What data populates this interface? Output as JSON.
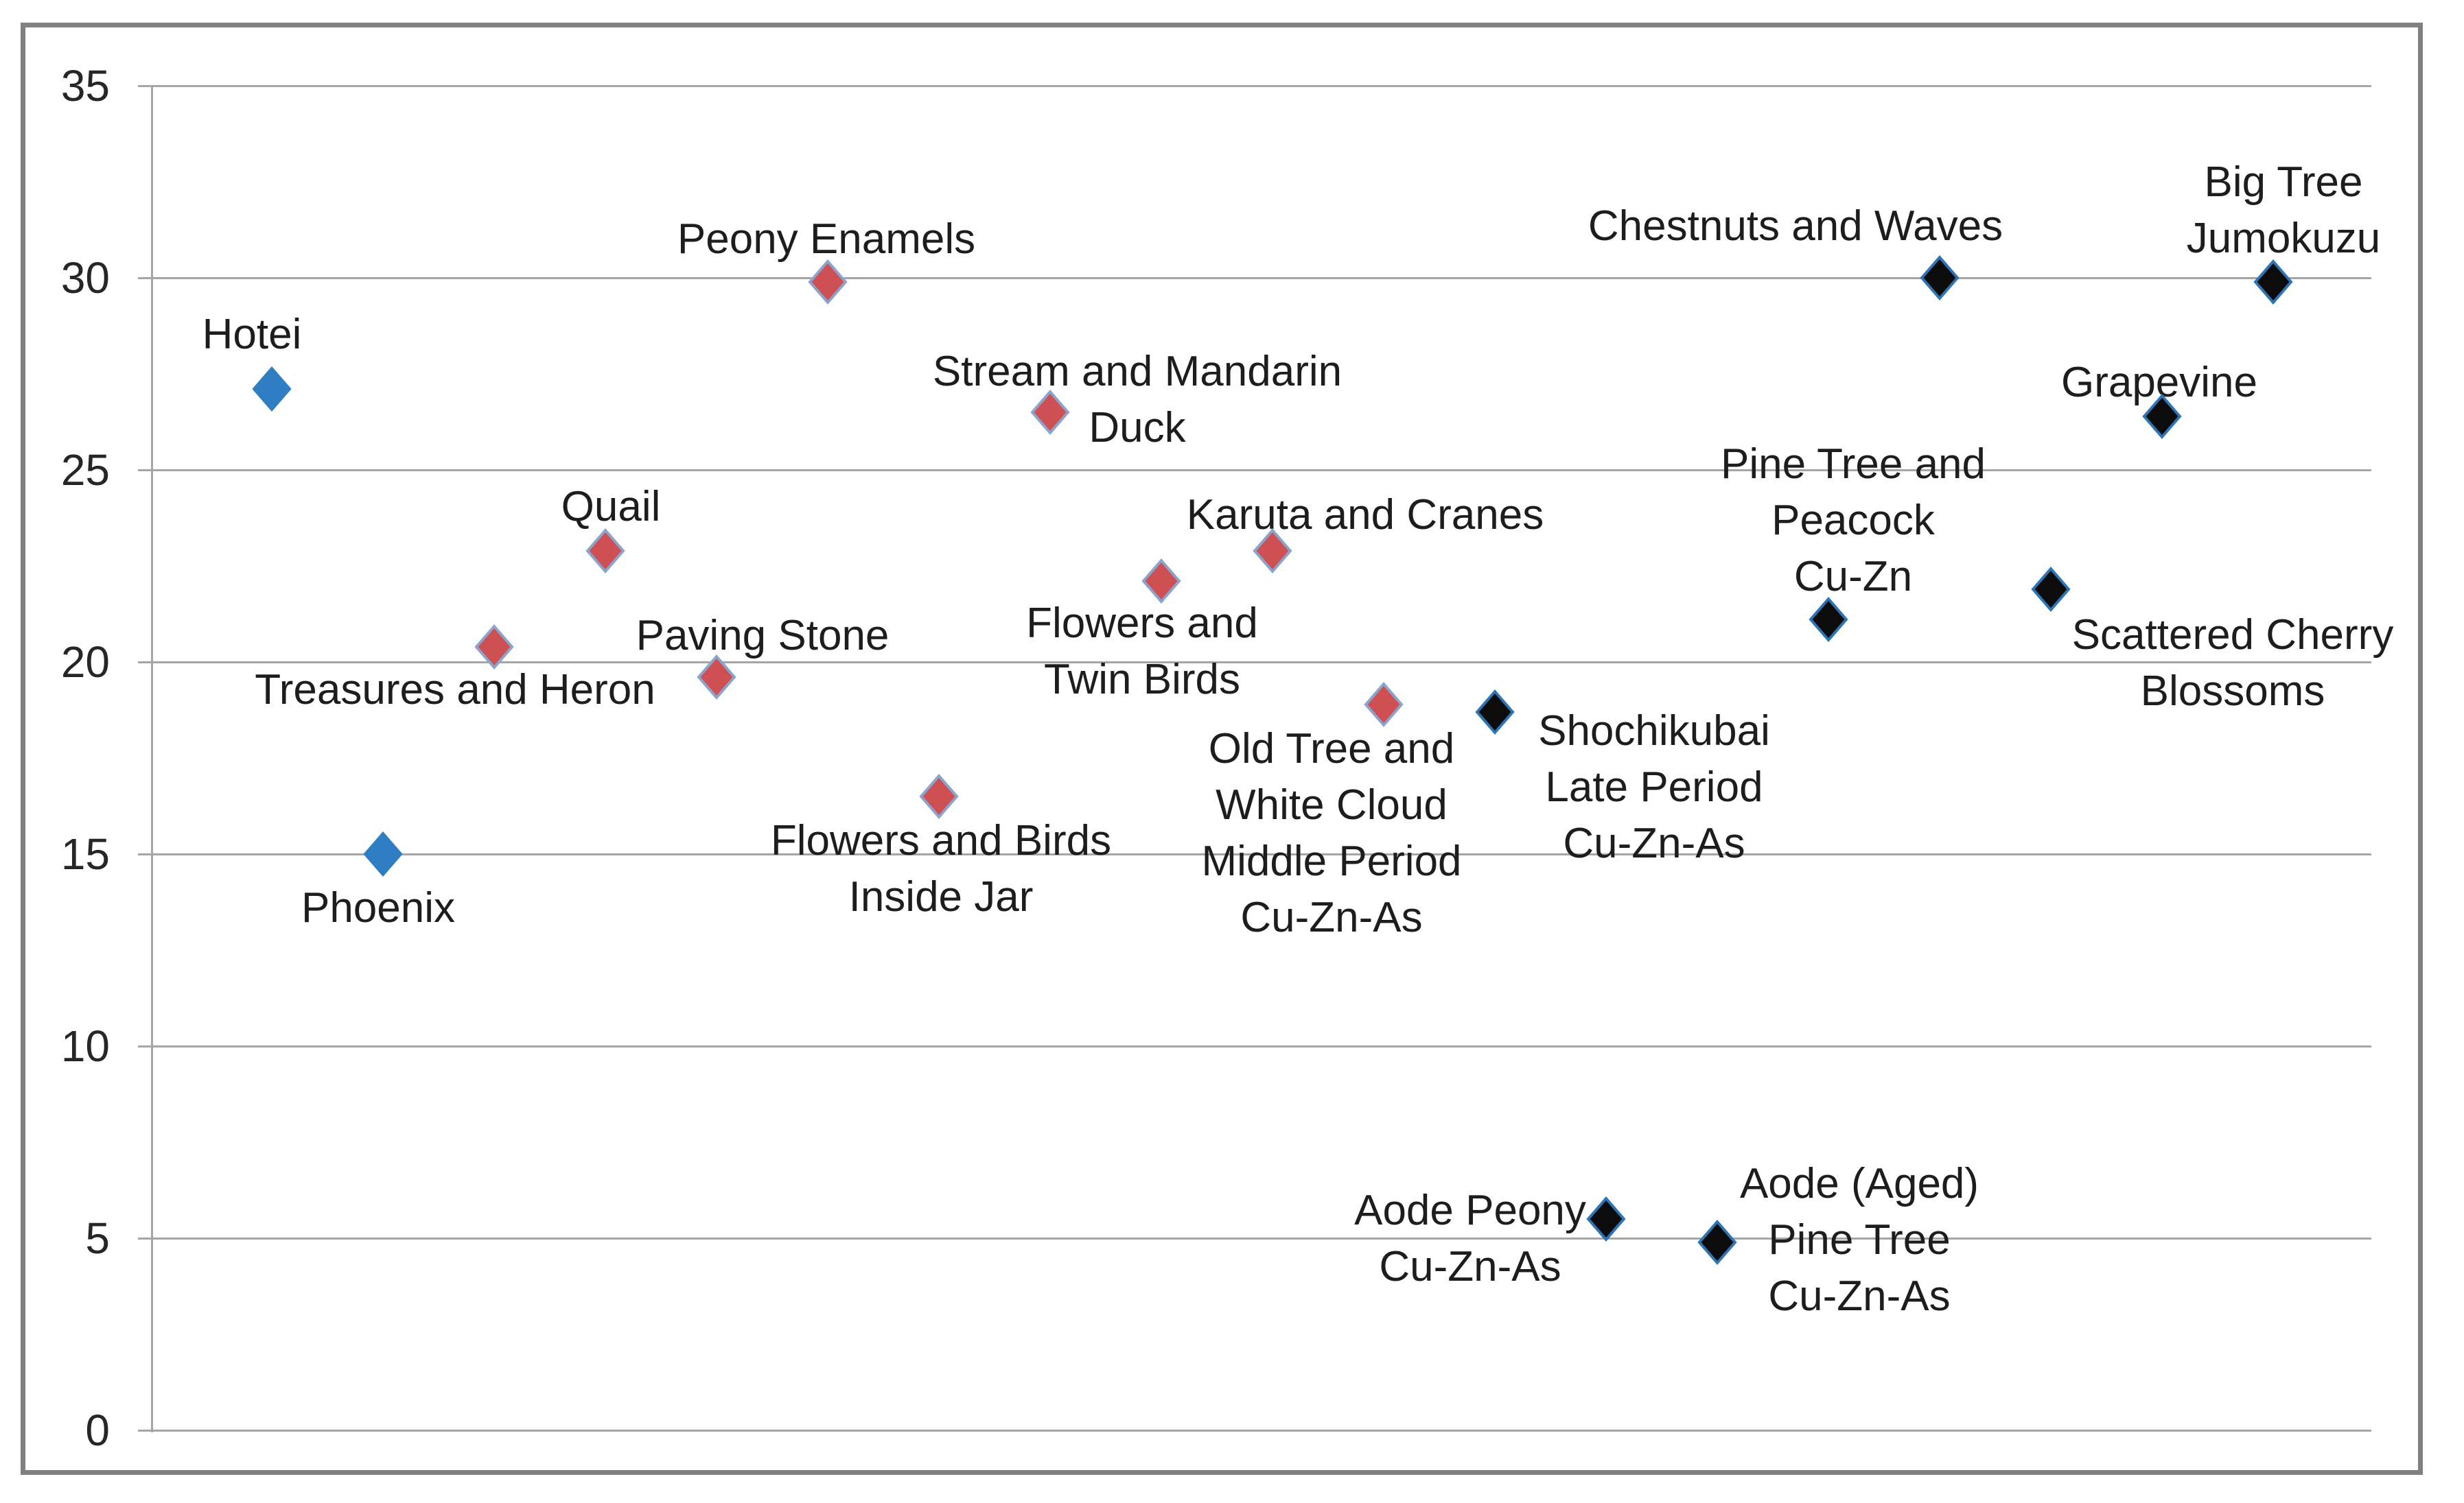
{
  "figure": {
    "background": "#FFFFFF",
    "outer_border_color": "#808080",
    "gridline_color": "#A6A6A6",
    "axis_line_color": "#A6A6A6",
    "tick_text_color": "#262626",
    "label_text_color": "#1D1D1D"
  },
  "chart_data": {
    "type": "scatter",
    "title": "",
    "xlabel": "",
    "ylabel": "",
    "ylim": [
      0,
      35
    ],
    "y_ticks": [
      35,
      30,
      25,
      20,
      15,
      10,
      5,
      0
    ],
    "x_axis": "no x tick labels; points placed at equal horizontal steps, sequence index 1-19",
    "grid": "horizontal gridlines at every y tick, with short tick stubs left of the y axis",
    "legend": "none",
    "marker_shape": "diamond",
    "series": [
      {
        "name": "blue-points",
        "marker_fill": "#2F7DC2",
        "marker_stroke": "#2F7DC2",
        "points": [
          {
            "x": 1,
            "y": 27.1,
            "label_lines": [
              "Hotei"
            ],
            "label_dx": -29,
            "label_dy": -79
          },
          {
            "x": 2,
            "y": 15.0,
            "label_lines": [
              "Phoenix"
            ],
            "label_dx": -7,
            "label_dy": 79
          }
        ]
      },
      {
        "name": "red-points",
        "marker_fill": "#CF5052",
        "marker_stroke": "#8AA4CE",
        "points": [
          {
            "x": 3,
            "y": 20.4,
            "label_lines": [
              "Treasures and Heron"
            ],
            "label_dx": -57,
            "label_dy": 63
          },
          {
            "x": 4,
            "y": 22.9,
            "label_lines": [
              "Quail"
            ],
            "label_dx": 8,
            "label_dy": -64
          },
          {
            "x": 5,
            "y": 19.6,
            "label_lines": [
              "Paving Stone"
            ],
            "label_dx": 67,
            "label_dy": -60
          },
          {
            "x": 6,
            "y": 29.9,
            "label_lines": [
              "Peony Enamels"
            ],
            "label_dx": -2,
            "label_dy": -62
          },
          {
            "x": 7,
            "y": 16.5,
            "label_lines": [
              "Flowers and Birds",
              "Inside Jar"
            ],
            "label_dx": 3,
            "label_dy": 106
          },
          {
            "x": 8,
            "y": 26.5,
            "label_lines": [
              "Stream and Mandarin",
              "Duck"
            ],
            "label_dx": 127,
            "label_dy": -18
          },
          {
            "x": 9,
            "y": 22.1,
            "label_lines": [
              "Flowers and",
              "Twin Birds"
            ],
            "label_dx": -28,
            "label_dy": 103
          },
          {
            "x": 10,
            "y": 22.9,
            "label_lines": [
              "Karuta and Cranes"
            ],
            "label_dx": 135,
            "label_dy": -52
          },
          {
            "x": 11,
            "y": 18.9,
            "label_lines": [
              "Old Tree and",
              "White Cloud",
              "Middle Period",
              "Cu-Zn-As"
            ],
            "label_dx": -76,
            "label_dy": 188
          }
        ]
      },
      {
        "name": "black-points",
        "marker_fill": "#0C0C0C",
        "marker_stroke": "#2E75B6",
        "points": [
          {
            "x": 12,
            "y": 18.7,
            "label_lines": [
              "Shochikubai",
              "Late Period",
              "Cu-Zn-As"
            ],
            "label_dx": 232,
            "label_dy": 110
          },
          {
            "x": 13,
            "y": 5.5,
            "label_lines": [
              "Aode Peony",
              "Cu-Zn-As"
            ],
            "label_dx": -198,
            "label_dy": 29
          },
          {
            "x": 14,
            "y": 4.9,
            "label_lines": [
              "Aode (Aged)",
              "Pine Tree",
              "Cu-Zn-As"
            ],
            "label_dx": 207,
            "label_dy": -3
          },
          {
            "x": 15,
            "y": 21.1,
            "label_lines": [
              "Pine Tree and",
              "Peacock",
              "Cu-Zn"
            ],
            "label_dx": 36,
            "label_dy": -144
          },
          {
            "x": 16,
            "y": 30.0,
            "label_lines": [
              "Chestnuts and Waves"
            ],
            "label_dx": -210,
            "label_dy": -75
          },
          {
            "x": 17,
            "y": 21.9,
            "label_lines": [
              "Scattered Cherry",
              "Blossoms"
            ],
            "label_dx": 265,
            "label_dy": 108
          },
          {
            "x": 18,
            "y": 26.4,
            "label_lines": [
              "Grapevine"
            ],
            "label_dx": -4,
            "label_dy": -49
          },
          {
            "x": 19,
            "y": 29.9,
            "label_lines": [
              "Big Tree",
              "Jumokuzu"
            ],
            "label_dx": 15,
            "label_dy": -104
          }
        ]
      }
    ]
  }
}
